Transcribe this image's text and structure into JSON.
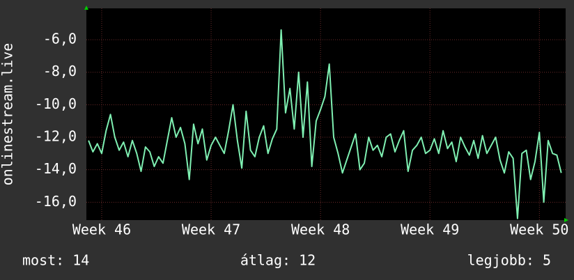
{
  "chart_data": {
    "type": "line",
    "y_label": "onlinestream.live",
    "x": [
      45.88,
      45.92,
      45.96,
      46.0,
      46.04,
      46.08,
      46.12,
      46.16,
      46.2,
      46.24,
      46.28,
      46.32,
      46.36,
      46.4,
      46.44,
      46.48,
      46.52,
      46.56,
      46.6,
      46.64,
      46.68,
      46.72,
      46.76,
      46.8,
      46.84,
      46.88,
      46.92,
      46.96,
      47.0,
      47.04,
      47.08,
      47.12,
      47.16,
      47.2,
      47.24,
      47.28,
      47.32,
      47.36,
      47.4,
      47.44,
      47.48,
      47.52,
      47.56,
      47.6,
      47.64,
      47.68,
      47.72,
      47.76,
      47.8,
      47.84,
      47.88,
      47.92,
      47.96,
      48.0,
      48.04,
      48.08,
      48.12,
      48.16,
      48.2,
      48.24,
      48.28,
      48.32,
      48.36,
      48.4,
      48.44,
      48.48,
      48.52,
      48.56,
      48.6,
      48.64,
      48.68,
      48.72,
      48.76,
      48.8,
      48.84,
      48.88,
      48.92,
      48.96,
      49.0,
      49.04,
      49.08,
      49.12,
      49.16,
      49.2,
      49.24,
      49.28,
      49.32,
      49.36,
      49.4,
      49.44,
      49.48,
      49.52,
      49.56,
      49.6,
      49.64,
      49.68,
      49.72,
      49.76,
      49.8,
      49.84,
      49.88,
      49.92,
      49.96,
      50.0,
      50.04,
      50.08,
      50.12,
      50.16,
      50.2
    ],
    "series": [
      {
        "name": "onlinestream.live",
        "color": "#7ff0b2",
        "values": [
          -12.2,
          -12.9,
          -12.4,
          -13.0,
          -11.6,
          -10.6,
          -12.0,
          -12.8,
          -12.3,
          -13.2,
          -12.2,
          -13.0,
          -14.1,
          -12.6,
          -12.9,
          -13.8,
          -13.2,
          -13.6,
          -12.2,
          -10.8,
          -12.0,
          -11.4,
          -12.4,
          -14.6,
          -11.2,
          -12.4,
          -11.5,
          -13.4,
          -12.5,
          -12.0,
          -12.5,
          -13.0,
          -11.6,
          -10.0,
          -12.2,
          -13.9,
          -10.4,
          -12.8,
          -13.2,
          -12.0,
          -11.3,
          -13.0,
          -12.1,
          -11.5,
          -5.4,
          -10.5,
          -9.0,
          -11.5,
          -8.0,
          -12.0,
          -8.6,
          -13.8,
          -11.0,
          -10.3,
          -9.5,
          -7.5,
          -12.0,
          -13.0,
          -14.2,
          -13.4,
          -12.6,
          -11.8,
          -14.0,
          -13.6,
          -12.0,
          -12.8,
          -12.5,
          -13.2,
          -12.0,
          -11.8,
          -12.9,
          -12.2,
          -11.6,
          -14.1,
          -12.8,
          -12.5,
          -12.0,
          -13.0,
          -12.8,
          -12.1,
          -13.0,
          -11.6,
          -12.7,
          -12.3,
          -13.5,
          -12.0,
          -12.6,
          -13.1,
          -12.2,
          -13.3,
          -11.9,
          -13.0,
          -12.5,
          -12.0,
          -13.4,
          -14.2,
          -12.9,
          -13.3,
          -17.0,
          -13.0,
          -12.8,
          -14.6,
          -13.5,
          -11.7,
          -16.0,
          -12.2,
          -13.0,
          -13.1,
          -14.2
        ]
      }
    ],
    "xlim": [
      45.86,
      50.24
    ],
    "xticks": [
      {
        "value": 46,
        "label": "Week 46"
      },
      {
        "value": 47,
        "label": "Week 47"
      },
      {
        "value": 48,
        "label": "Week 48"
      },
      {
        "value": 49,
        "label": "Week 49"
      },
      {
        "value": 50,
        "label": "Week 50"
      }
    ],
    "ylim": [
      -17.1,
      -4.07
    ],
    "yticks": [
      {
        "value": -16,
        "label": "-16,0"
      },
      {
        "value": -14,
        "label": "-14,0"
      },
      {
        "value": -12,
        "label": "-12,0"
      },
      {
        "value": -10,
        "label": "-10,0"
      },
      {
        "value": -8,
        "label": "-8,0"
      },
      {
        "value": -6,
        "label": "-6,0"
      }
    ],
    "grid": true,
    "legend": [
      "most: 14",
      "átlag: 12",
      "legjobb: 5"
    ]
  }
}
